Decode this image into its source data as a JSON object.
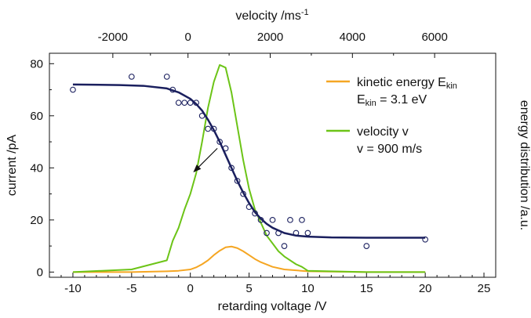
{
  "chart_data": {
    "type": "line",
    "x_axis_bottom": {
      "label": "retarding voltage /V",
      "range": [
        -12,
        26
      ],
      "ticks": [
        -10,
        -5,
        0,
        5,
        10,
        15,
        20,
        25
      ],
      "tick_labels": [
        "-10",
        "-5",
        "0",
        "5",
        "10",
        "15",
        "20",
        "25"
      ]
    },
    "x_axis_top": {
      "label_main": "velocity /ms",
      "label_sup": "-1",
      "ticks": [
        -2000,
        0,
        2000,
        4000,
        6000
      ],
      "tick_labels": [
        "-2000",
        "0",
        "2000",
        "4000",
        "6000"
      ],
      "tick_positions_in_voltage": [
        -6.6,
        -0.2,
        6.8,
        13.8,
        20.8
      ]
    },
    "y_axis_left": {
      "label": "current /pA",
      "range": [
        -2,
        84
      ],
      "ticks": [
        0,
        20,
        40,
        60,
        80
      ],
      "tick_labels": [
        "0",
        "20",
        "40",
        "60",
        "80"
      ]
    },
    "y_axis_right": {
      "label": "energy distribution /a.u."
    },
    "series": [
      {
        "kind": "scatter",
        "color": "#1a1f5e",
        "x": [
          -10,
          -5,
          -2,
          -1.5,
          -1,
          -0.5,
          0,
          0.5,
          1,
          1.5,
          2,
          2.5,
          3,
          3.5,
          4,
          4.5,
          5,
          5.5,
          6,
          6.5,
          7,
          7.5,
          8,
          8.5,
          9,
          9.5,
          10,
          15,
          20
        ],
        "y": [
          70,
          75,
          75,
          70,
          65,
          65,
          65,
          65,
          60,
          55,
          55,
          50,
          47.5,
          40,
          35,
          30,
          25,
          22.5,
          20,
          15,
          20,
          15,
          10,
          20,
          15,
          20,
          15,
          10,
          12.5
        ]
      },
      {
        "kind": "line",
        "color": "#1a1f5e",
        "x": [
          -10,
          -6,
          -4,
          -2,
          -1,
          0,
          0.5,
          1,
          1.5,
          2,
          2.5,
          3,
          3.5,
          4,
          4.5,
          5,
          5.5,
          6,
          6.5,
          7,
          8,
          9,
          10,
          12,
          15,
          20
        ],
        "y": [
          72,
          71.8,
          71.5,
          70.5,
          69,
          66.5,
          64.5,
          62,
          58.5,
          54.5,
          50,
          45,
          40,
          35,
          30.5,
          26.5,
          23,
          20.5,
          18.5,
          17,
          15,
          14,
          13.6,
          13.3,
          13.2,
          13.2
        ]
      },
      {
        "name": "kinetic energy E",
        "name_sub": "kin",
        "detail": "E",
        "detail_sub": "kin",
        "detail_rest": " = 3.1 eV",
        "kind": "line",
        "color": "#f5a623",
        "x": [
          -10,
          -5,
          -2,
          -1,
          0,
          0.5,
          1,
          1.5,
          2,
          2.5,
          3,
          3.5,
          4,
          4.5,
          5,
          5.5,
          6,
          7,
          8,
          10,
          15,
          20
        ],
        "y": [
          0,
          0,
          0.3,
          0.5,
          1,
          1.8,
          3,
          4.5,
          6.5,
          8.2,
          9.5,
          9.8,
          9.2,
          8,
          6.5,
          5,
          3.8,
          2,
          1,
          0.3,
          0,
          0
        ]
      },
      {
        "name": "velocity v",
        "detail": "v = 900 m/s",
        "kind": "line",
        "color": "#6cc417",
        "x": [
          -10,
          -5,
          -2,
          -1.5,
          -1,
          -0.5,
          0,
          0.5,
          1,
          1.5,
          2,
          2.5,
          3,
          3.5,
          4,
          4.5,
          5,
          5.5,
          6,
          6.5,
          7,
          7.5,
          8,
          9,
          9.5,
          10,
          15,
          20
        ],
        "y": [
          0,
          1,
          4.5,
          12,
          17,
          24,
          30,
          38,
          50,
          63,
          73,
          79.5,
          78.5,
          69,
          56,
          43,
          32,
          24,
          19,
          14,
          11,
          8,
          6,
          3,
          2,
          0.5,
          0,
          0
        ]
      }
    ],
    "annotations": [
      {
        "kind": "arrow",
        "from": [
          2.3,
          47.5
        ],
        "to": [
          0.3,
          38.5
        ]
      }
    ],
    "legend_position": "top-right",
    "grid": false
  }
}
